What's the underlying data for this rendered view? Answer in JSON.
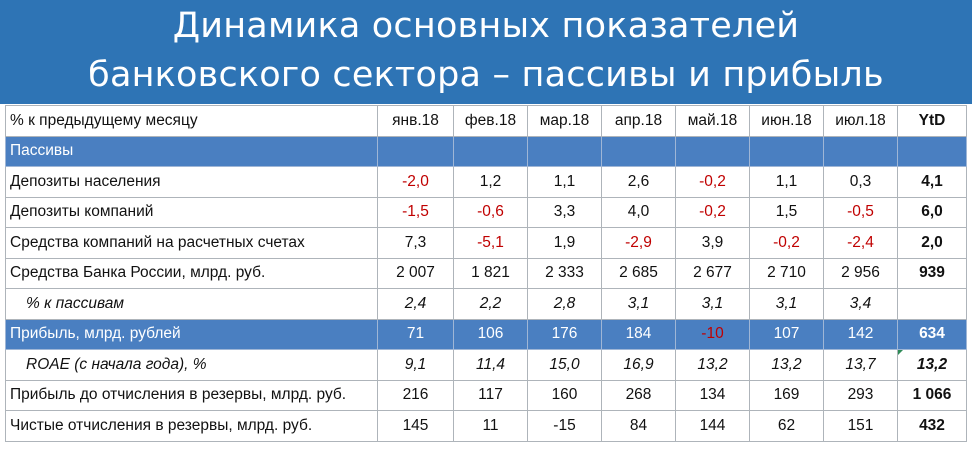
{
  "title": {
    "line1": "Динамика основных показателей",
    "line2": "банковского сектора – пассивы и прибыль"
  },
  "table": {
    "header": [
      "% к предыдущему месяцу",
      "янв.18",
      "фев.18",
      "мар.18",
      "апр.18",
      "май.18",
      "июн.18",
      "июл.18",
      "YtD"
    ],
    "section": "Пассивы",
    "rows": [
      {
        "label": "Депозиты населения",
        "values": [
          "-2,0",
          "1,2",
          "1,1",
          "2,6",
          "-0,2",
          "1,1",
          "0,3"
        ],
        "ytd": "4,1"
      },
      {
        "label": "Депозиты компаний",
        "values": [
          "-1,5",
          "-0,6",
          "3,3",
          "4,0",
          "-0,2",
          "1,5",
          "-0,5"
        ],
        "ytd": "6,0"
      },
      {
        "label": "Средства компаний на расчетных счетах",
        "values": [
          "7,3",
          "-5,1",
          "1,9",
          "-2,9",
          "3,9",
          "-0,2",
          "-2,4"
        ],
        "ytd": "2,0"
      },
      {
        "label": "Средства Банка России, млрд. руб.",
        "values": [
          "2 007",
          "1 821",
          "2 333",
          "2 685",
          "2 677",
          "2 710",
          "2 956"
        ],
        "ytd": "939"
      },
      {
        "label": "% к пассивам",
        "values": [
          "2,4",
          "2,2",
          "2,8",
          "3,1",
          "3,1",
          "3,1",
          "3,4"
        ],
        "ytd": ""
      },
      {
        "label": "Прибыль, млрд. рублей",
        "values": [
          "71",
          "106",
          "176",
          "184",
          "-10",
          "107",
          "142"
        ],
        "ytd": "634"
      },
      {
        "label": "ROAE (с начала года), %",
        "values": [
          "9,1",
          "11,4",
          "15,0",
          "16,9",
          "13,2",
          "13,2",
          "13,7"
        ],
        "ytd": "13,2"
      },
      {
        "label": "Прибыль до отчисления в резервы, млрд. руб.",
        "values": [
          "216",
          "117",
          "160",
          "268",
          "134",
          "169",
          "293"
        ],
        "ytd": "1 066"
      },
      {
        "label": "Чистые отчисления в резервы, млрд. руб.",
        "values": [
          "145",
          "11",
          "-15",
          "84",
          "144",
          "62",
          "151"
        ],
        "ytd": "432"
      }
    ]
  },
  "colors": {
    "header_bg": "#2e74b5",
    "highlight_row_bg": "#4a7fc1",
    "negative": "#c00000"
  }
}
